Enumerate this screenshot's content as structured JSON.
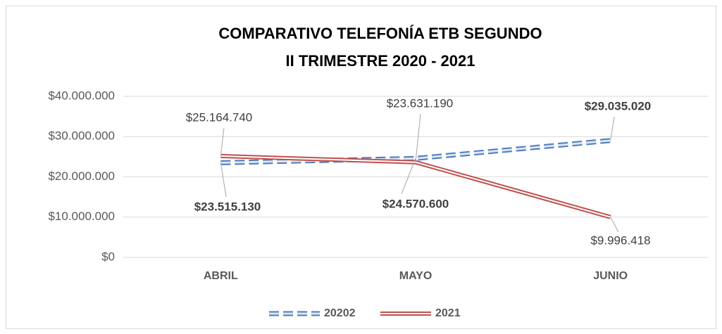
{
  "chart_data": {
    "type": "line",
    "title": [
      "COMPARATIVO TELEFONÍA ETB SEGUNDO",
      "II TRIMESTRE 2020 - 2021"
    ],
    "categories": [
      "ABRIL",
      "MAYO",
      "JUNIO"
    ],
    "series": [
      {
        "name": "20202",
        "color": "#4f7bbd",
        "style": "dashed",
        "values": [
          23515130,
          24570600,
          29035020
        ],
        "value_labels": [
          "$23.515.130",
          "$24.570.600",
          "$29.035.020"
        ]
      },
      {
        "name": "2021",
        "color": "#c0504d",
        "style": "double",
        "values": [
          25164740,
          23631190,
          9996418
        ],
        "value_labels": [
          "$25.164.740",
          "$23.631.190",
          "$9.996.418"
        ]
      }
    ],
    "ylim": [
      0,
      40000000
    ],
    "yticks": [
      {
        "value": 0,
        "label": "$0"
      },
      {
        "value": 10000000,
        "label": "$10.000.000"
      },
      {
        "value": 20000000,
        "label": "$20.000.000"
      },
      {
        "value": 30000000,
        "label": "$30.000.000"
      },
      {
        "value": 40000000,
        "label": "$40.000.000"
      }
    ],
    "grid": true,
    "legend": "bottom"
  }
}
